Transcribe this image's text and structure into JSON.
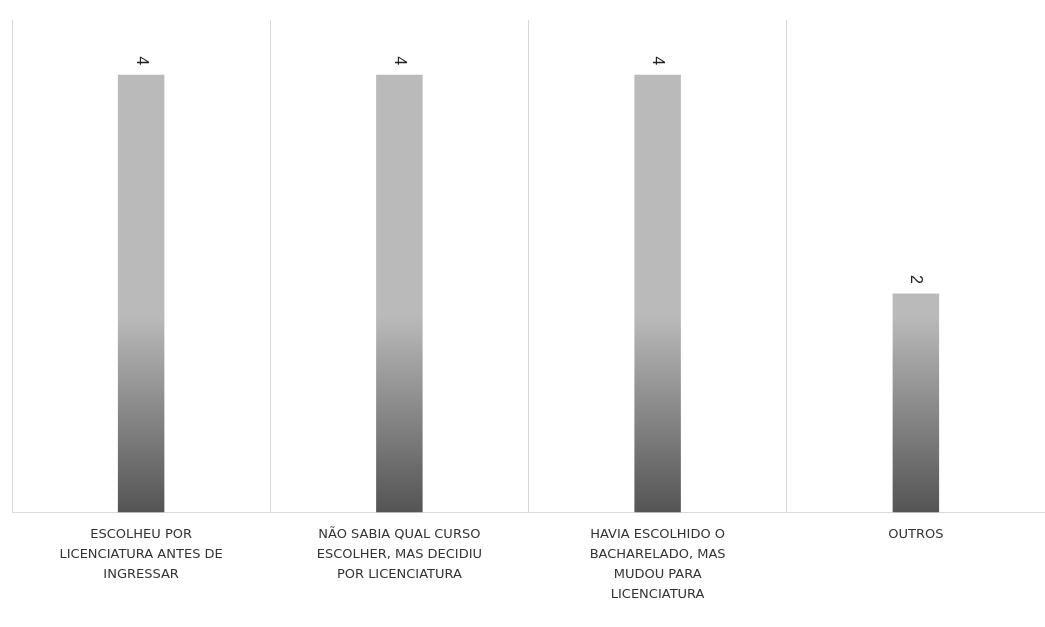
{
  "chart_data": {
    "type": "bar",
    "categories": [
      "ESCOLHEU POR LICENCIATURA ANTES DE INGRESSAR",
      "NÃO SABIA QUAL CURSO ESCOLHER, MAS DECIDIU POR LICENCIATURA",
      "HAVIA ESCOLHIDO O BACHARELADO, MAS MUDOU PARA LICENCIATURA",
      "OUTROS"
    ],
    "values": [
      4,
      4,
      4,
      2
    ],
    "color": "#bababa",
    "data_labels": true,
    "grid": "x",
    "legend": false,
    "tick_labels": "x"
  }
}
